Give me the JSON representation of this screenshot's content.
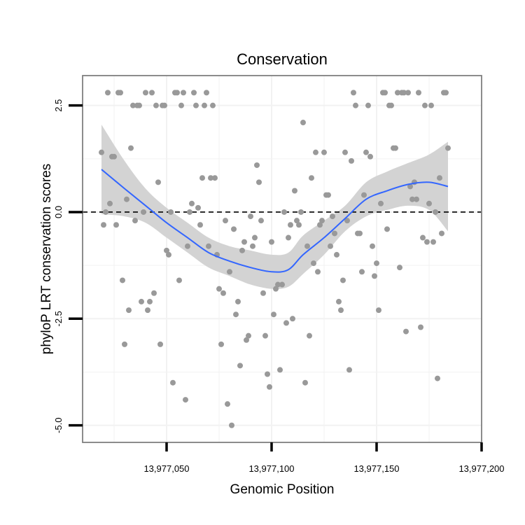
{
  "chart_data": {
    "type": "scatter",
    "title": "Conservation",
    "xlabel": "Genomic Position",
    "ylabel": "phyloP LRT conservation scores",
    "xlim": [
      13977010,
      13977200
    ],
    "ylim": [
      -5.4,
      3.2
    ],
    "x_ticks": [
      13977050,
      13977100,
      13977150,
      13977200
    ],
    "x_tick_labels": [
      "13,977,050",
      "13,977,100",
      "13,977,150",
      "13,977,200"
    ],
    "y_ticks": [
      -5.0,
      -2.5,
      0.0,
      2.5
    ],
    "y_tick_labels": [
      "-5.0",
      "-2.5",
      "0.0",
      "2.5"
    ],
    "reference_line": 0,
    "grid": true,
    "colors": {
      "points": "#999999",
      "smooth": "#3366ff",
      "ribbon": "#d3d3d3",
      "panel_border": "#7f7f7f",
      "grid": "#f2f2f2"
    },
    "points": [
      [
        13977019,
        1.4
      ],
      [
        13977020,
        -0.3
      ],
      [
        13977021,
        0.0
      ],
      [
        13977022,
        2.8
      ],
      [
        13977023,
        0.2
      ],
      [
        13977024,
        1.3
      ],
      [
        13977025,
        1.3
      ],
      [
        13977026,
        -0.3
      ],
      [
        13977027,
        2.8
      ],
      [
        13977028,
        2.8
      ],
      [
        13977029,
        -1.6
      ],
      [
        13977030,
        -3.1
      ],
      [
        13977031,
        0.3
      ],
      [
        13977032,
        -2.3
      ],
      [
        13977033,
        1.5
      ],
      [
        13977034,
        2.5
      ],
      [
        13977035,
        -0.2
      ],
      [
        13977036,
        2.5
      ],
      [
        13977037,
        2.5
      ],
      [
        13977038,
        -2.1
      ],
      [
        13977039,
        0.0
      ],
      [
        13977040,
        2.8
      ],
      [
        13977041,
        -2.3
      ],
      [
        13977042,
        -2.1
      ],
      [
        13977043,
        2.8
      ],
      [
        13977044,
        -1.9
      ],
      [
        13977045,
        2.5
      ],
      [
        13977046,
        0.7
      ],
      [
        13977047,
        -3.1
      ],
      [
        13977048,
        2.5
      ],
      [
        13977049,
        2.5
      ],
      [
        13977050,
        -0.9
      ],
      [
        13977051,
        -1.0
      ],
      [
        13977052,
        0.0
      ],
      [
        13977053,
        -4.0
      ],
      [
        13977054,
        2.8
      ],
      [
        13977055,
        2.8
      ],
      [
        13977056,
        -1.6
      ],
      [
        13977057,
        2.5
      ],
      [
        13977058,
        2.8
      ],
      [
        13977059,
        -4.4
      ],
      [
        13977060,
        -0.8
      ],
      [
        13977061,
        0.0
      ],
      [
        13977062,
        0.2
      ],
      [
        13977063,
        2.8
      ],
      [
        13977064,
        2.5
      ],
      [
        13977065,
        0.1
      ],
      [
        13977066,
        -0.3
      ],
      [
        13977067,
        0.8
      ],
      [
        13977068,
        2.5
      ],
      [
        13977069,
        2.8
      ],
      [
        13977070,
        -0.8
      ],
      [
        13977071,
        0.8
      ],
      [
        13977072,
        2.5
      ],
      [
        13977073,
        0.8
      ],
      [
        13977074,
        -1.0
      ],
      [
        13977075,
        -1.8
      ],
      [
        13977076,
        -3.1
      ],
      [
        13977077,
        -1.9
      ],
      [
        13977078,
        -0.2
      ],
      [
        13977079,
        -4.5
      ],
      [
        13977080,
        -1.4
      ],
      [
        13977081,
        -5.0
      ],
      [
        13977082,
        -0.4
      ],
      [
        13977083,
        -2.4
      ],
      [
        13977084,
        -2.1
      ],
      [
        13977085,
        -3.6
      ],
      [
        13977086,
        -0.9
      ],
      [
        13977087,
        -0.7
      ],
      [
        13977088,
        -3.0
      ],
      [
        13977089,
        -2.9
      ],
      [
        13977090,
        -0.1
      ],
      [
        13977091,
        -0.8
      ],
      [
        13977092,
        -0.6
      ],
      [
        13977093,
        1.1
      ],
      [
        13977094,
        0.7
      ],
      [
        13977095,
        -0.2
      ],
      [
        13977096,
        -1.9
      ],
      [
        13977097,
        -2.9
      ],
      [
        13977098,
        -3.8
      ],
      [
        13977099,
        -4.1
      ],
      [
        13977100,
        -0.7
      ],
      [
        13977101,
        -2.4
      ],
      [
        13977102,
        -1.8
      ],
      [
        13977103,
        -1.7
      ],
      [
        13977104,
        -3.7
      ],
      [
        13977105,
        -1.7
      ],
      [
        13977106,
        0.0
      ],
      [
        13977107,
        -2.6
      ],
      [
        13977108,
        -0.6
      ],
      [
        13977109,
        -0.3
      ],
      [
        13977110,
        -2.5
      ],
      [
        13977111,
        0.5
      ],
      [
        13977112,
        -0.2
      ],
      [
        13977113,
        -0.3
      ],
      [
        13977114,
        0.0
      ],
      [
        13977115,
        2.1
      ],
      [
        13977116,
        -4.0
      ],
      [
        13977117,
        -0.8
      ],
      [
        13977118,
        -2.9
      ],
      [
        13977119,
        0.8
      ],
      [
        13977120,
        -1.2
      ],
      [
        13977121,
        1.4
      ],
      [
        13977122,
        -1.4
      ],
      [
        13977123,
        -0.3
      ],
      [
        13977124,
        -0.2
      ],
      [
        13977125,
        1.4
      ],
      [
        13977126,
        0.4
      ],
      [
        13977127,
        0.4
      ],
      [
        13977128,
        -0.8
      ],
      [
        13977129,
        -0.1
      ],
      [
        13977130,
        -0.5
      ],
      [
        13977131,
        -1.0
      ],
      [
        13977132,
        -2.1
      ],
      [
        13977133,
        -2.3
      ],
      [
        13977134,
        -1.6
      ],
      [
        13977135,
        1.4
      ],
      [
        13977136,
        -0.2
      ],
      [
        13977137,
        -3.7
      ],
      [
        13977138,
        1.2
      ],
      [
        13977139,
        2.8
      ],
      [
        13977140,
        2.5
      ],
      [
        13977141,
        -0.5
      ],
      [
        13977142,
        -0.5
      ],
      [
        13977143,
        -1.4
      ],
      [
        13977144,
        0.4
      ],
      [
        13977145,
        1.4
      ],
      [
        13977146,
        2.5
      ],
      [
        13977147,
        1.3
      ],
      [
        13977148,
        -0.8
      ],
      [
        13977149,
        -1.5
      ],
      [
        13977150,
        -1.2
      ],
      [
        13977151,
        -2.3
      ],
      [
        13977152,
        0.2
      ],
      [
        13977153,
        2.8
      ],
      [
        13977154,
        2.8
      ],
      [
        13977155,
        -0.4
      ],
      [
        13977156,
        2.5
      ],
      [
        13977157,
        2.5
      ],
      [
        13977158,
        1.5
      ],
      [
        13977159,
        1.5
      ],
      [
        13977160,
        2.8
      ],
      [
        13977161,
        -1.3
      ],
      [
        13977162,
        2.8
      ],
      [
        13977163,
        2.8
      ],
      [
        13977164,
        -2.8
      ],
      [
        13977165,
        2.8
      ],
      [
        13977166,
        0.6
      ],
      [
        13977167,
        0.3
      ],
      [
        13977168,
        0.7
      ],
      [
        13977169,
        0.3
      ],
      [
        13977170,
        2.8
      ],
      [
        13977171,
        -2.7
      ],
      [
        13977172,
        -0.6
      ],
      [
        13977173,
        2.5
      ],
      [
        13977174,
        -0.7
      ],
      [
        13977175,
        0.2
      ],
      [
        13977176,
        2.5
      ],
      [
        13977177,
        -0.7
      ],
      [
        13977178,
        0.0
      ],
      [
        13977179,
        -3.9
      ],
      [
        13977180,
        0.8
      ],
      [
        13977181,
        -0.5
      ],
      [
        13977182,
        2.8
      ],
      [
        13977183,
        2.8
      ],
      [
        13977184,
        1.5
      ]
    ],
    "smooth": [
      [
        13977019,
        1.0
      ],
      [
        13977030,
        0.55
      ],
      [
        13977040,
        0.15
      ],
      [
        13977050,
        -0.25
      ],
      [
        13977060,
        -0.6
      ],
      [
        13977070,
        -0.95
      ],
      [
        13977080,
        -1.15
      ],
      [
        13977090,
        -1.3
      ],
      [
        13977100,
        -1.4
      ],
      [
        13977108,
        -1.35
      ],
      [
        13977115,
        -1.0
      ],
      [
        13977125,
        -0.6
      ],
      [
        13977135,
        -0.15
      ],
      [
        13977145,
        0.3
      ],
      [
        13977155,
        0.5
      ],
      [
        13977165,
        0.65
      ],
      [
        13977175,
        0.7
      ],
      [
        13977184,
        0.6
      ]
    ],
    "ribbon_upper": [
      [
        13977019,
        2.05
      ],
      [
        13977030,
        1.2
      ],
      [
        13977040,
        0.55
      ],
      [
        13977050,
        0.1
      ],
      [
        13977060,
        -0.25
      ],
      [
        13977070,
        -0.6
      ],
      [
        13977080,
        -0.8
      ],
      [
        13977090,
        -0.9
      ],
      [
        13977100,
        -1.0
      ],
      [
        13977108,
        -0.95
      ],
      [
        13977115,
        -0.55
      ],
      [
        13977125,
        -0.2
      ],
      [
        13977135,
        0.15
      ],
      [
        13977145,
        0.7
      ],
      [
        13977155,
        0.95
      ],
      [
        13977165,
        1.15
      ],
      [
        13977175,
        1.35
      ],
      [
        13977184,
        1.65
      ]
    ],
    "ribbon_lower": [
      [
        13977019,
        -0.05
      ],
      [
        13977030,
        -0.1
      ],
      [
        13977040,
        -0.25
      ],
      [
        13977050,
        -0.6
      ],
      [
        13977060,
        -0.95
      ],
      [
        13977070,
        -1.3
      ],
      [
        13977080,
        -1.5
      ],
      [
        13977090,
        -1.7
      ],
      [
        13977100,
        -1.8
      ],
      [
        13977108,
        -1.75
      ],
      [
        13977115,
        -1.45
      ],
      [
        13977125,
        -1.0
      ],
      [
        13977135,
        -0.45
      ],
      [
        13977145,
        -0.1
      ],
      [
        13977155,
        0.05
      ],
      [
        13977165,
        0.15
      ],
      [
        13977175,
        0.05
      ],
      [
        13977184,
        -0.45
      ]
    ]
  }
}
